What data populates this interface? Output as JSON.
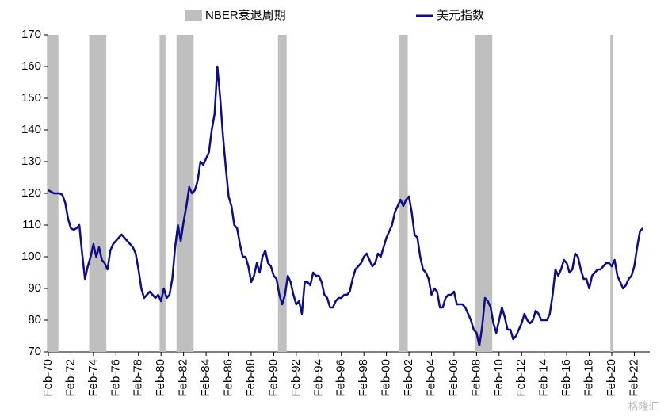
{
  "chart_data": {
    "type": "line",
    "legend": "top",
    "watermark": "格隆汇",
    "ylim": [
      70,
      170
    ],
    "yticks": [
      70,
      80,
      90,
      100,
      110,
      120,
      130,
      140,
      150,
      160,
      170
    ],
    "categories": [
      "Feb-70",
      null,
      null,
      null,
      null,
      null,
      null,
      null,
      "Feb-72",
      null,
      null,
      null,
      null,
      null,
      null,
      null,
      "Feb-74",
      null,
      null,
      null,
      null,
      null,
      null,
      null,
      "Feb-76",
      null,
      null,
      null,
      null,
      null,
      null,
      null,
      "Feb-78",
      null,
      null,
      null,
      null,
      null,
      null,
      null,
      "Feb-80",
      null,
      null,
      null,
      null,
      null,
      null,
      null,
      "Feb-82",
      null,
      null,
      null,
      null,
      null,
      null,
      null,
      "Feb-84",
      null,
      null,
      null,
      null,
      null,
      null,
      null,
      "Feb-86",
      null,
      null,
      null,
      null,
      null,
      null,
      null,
      "Feb-88",
      null,
      null,
      null,
      null,
      null,
      null,
      null,
      "Feb-90",
      null,
      null,
      null,
      null,
      null,
      null,
      null,
      "Feb-92",
      null,
      null,
      null,
      null,
      null,
      null,
      null,
      "Feb-94",
      null,
      null,
      null,
      null,
      null,
      null,
      null,
      "Feb-96",
      null,
      null,
      null,
      null,
      null,
      null,
      null,
      "Feb-98",
      null,
      null,
      null,
      null,
      null,
      null,
      null,
      "Feb-00",
      null,
      null,
      null,
      null,
      null,
      null,
      null,
      "Feb-02",
      null,
      null,
      null,
      null,
      null,
      null,
      null,
      "Feb-04",
      null,
      null,
      null,
      null,
      null,
      null,
      null,
      "Feb-06",
      null,
      null,
      null,
      null,
      null,
      null,
      null,
      "Feb-08",
      null,
      null,
      null,
      null,
      null,
      null,
      null,
      "Feb-10",
      null,
      null,
      null,
      null,
      null,
      null,
      null,
      "Feb-12",
      null,
      null,
      null,
      null,
      null,
      null,
      null,
      "Feb-14",
      null,
      null,
      null,
      null,
      null,
      null,
      null,
      "Feb-16",
      null,
      null,
      null,
      null,
      null,
      null,
      null,
      "Feb-18",
      null,
      null,
      null,
      null,
      null,
      null,
      null,
      "Feb-20",
      null,
      null,
      null,
      null,
      null,
      null,
      null,
      "Feb-22",
      null,
      null,
      null
    ],
    "series": [
      {
        "name": "NBER衰退周期",
        "type": "bar",
        "color": "#bfbfbf",
        "values": [
          170,
          170,
          170,
          170,
          null,
          null,
          null,
          null,
          null,
          null,
          null,
          null,
          null,
          null,
          null,
          170,
          170,
          170,
          170,
          170,
          170,
          null,
          null,
          null,
          null,
          null,
          null,
          null,
          null,
          null,
          null,
          null,
          null,
          null,
          null,
          null,
          null,
          null,
          null,
          null,
          170,
          170,
          null,
          null,
          null,
          null,
          170,
          170,
          170,
          170,
          170,
          170,
          null,
          null,
          null,
          null,
          null,
          null,
          null,
          null,
          null,
          null,
          null,
          null,
          null,
          null,
          null,
          null,
          null,
          null,
          null,
          null,
          null,
          null,
          null,
          null,
          null,
          null,
          null,
          null,
          null,
          null,
          170,
          170,
          170,
          null,
          null,
          null,
          null,
          null,
          null,
          null,
          null,
          null,
          null,
          null,
          null,
          null,
          null,
          null,
          null,
          null,
          null,
          null,
          null,
          null,
          null,
          null,
          null,
          null,
          null,
          null,
          null,
          null,
          null,
          null,
          null,
          null,
          null,
          null,
          null,
          null,
          null,
          null,
          null,
          170,
          170,
          170,
          null,
          null,
          null,
          null,
          null,
          null,
          null,
          null,
          null,
          null,
          null,
          null,
          null,
          null,
          null,
          null,
          null,
          null,
          null,
          null,
          null,
          null,
          null,
          null,
          170,
          170,
          170,
          170,
          170,
          170,
          null,
          null,
          null,
          null,
          null,
          null,
          null,
          null,
          null,
          null,
          null,
          null,
          null,
          null,
          null,
          null,
          null,
          null,
          null,
          null,
          null,
          null,
          null,
          null,
          null,
          null,
          null,
          null,
          null,
          null,
          null,
          null,
          null,
          null,
          null,
          null,
          null,
          null,
          null,
          null,
          null,
          null,
          170,
          null,
          null,
          null,
          null,
          null,
          null,
          null,
          null,
          null,
          null,
          null
        ]
      },
      {
        "name": "美元指数",
        "type": "line",
        "color": "#0c0c8c",
        "values": [
          121,
          120.5,
          120,
          120,
          120,
          119.5,
          117,
          112,
          109,
          108.5,
          109,
          110,
          101,
          93,
          97,
          100,
          104,
          100,
          103,
          99,
          98,
          96,
          102,
          104,
          105,
          106,
          107,
          106,
          105,
          104,
          103,
          101,
          96,
          90,
          87,
          88,
          89,
          88,
          87,
          88,
          86,
          90,
          87,
          88,
          93,
          103,
          110,
          105,
          111,
          116,
          122,
          120,
          121,
          124,
          130,
          129,
          131,
          133,
          140,
          145,
          160,
          150,
          138,
          128,
          119,
          116,
          110,
          109,
          104,
          100,
          100,
          97,
          92,
          94,
          98,
          95,
          100,
          102,
          98,
          97,
          94,
          93,
          88,
          85,
          88,
          94,
          92,
          88,
          85,
          86,
          82,
          92,
          92,
          91,
          95,
          94,
          94,
          92,
          88,
          87,
          84,
          84,
          86,
          87,
          87,
          88,
          88,
          89,
          93,
          96,
          97,
          98,
          100,
          101,
          99,
          97,
          98,
          101,
          100,
          103,
          106,
          108,
          110,
          114,
          116,
          118,
          116,
          118,
          119,
          114,
          107,
          106,
          100,
          96,
          95,
          93,
          88,
          90,
          89,
          84,
          84,
          87,
          88,
          88,
          89,
          85,
          85,
          85,
          84,
          82,
          80,
          77,
          76,
          72,
          78,
          87,
          86,
          84,
          79,
          76,
          80,
          84,
          81,
          77,
          77,
          74,
          75,
          77,
          79,
          82,
          80,
          79,
          80,
          83,
          82,
          80,
          80,
          80,
          82,
          88,
          96,
          94,
          96,
          99,
          98,
          95,
          96,
          101,
          100,
          96,
          93,
          93,
          90,
          94,
          95,
          96,
          96,
          97,
          98,
          98,
          97,
          99,
          94,
          92,
          90,
          91,
          93,
          94,
          97,
          103,
          108,
          109
        ]
      }
    ]
  }
}
